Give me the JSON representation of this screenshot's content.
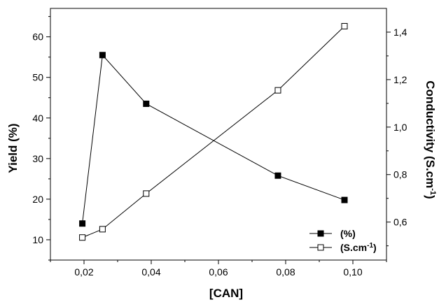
{
  "chart_data": {
    "type": "line",
    "xlabel": "[CAN]",
    "ylabel_left": "Yield (%)",
    "ylabel_right": "Conductivity (S.cm",
    "ylabel_right_sup": "-1",
    "ylabel_right_close": ")",
    "xlim": [
      0.01,
      0.11
    ],
    "ylim_left": [
      5,
      67
    ],
    "ylim_right": [
      0.44,
      1.5
    ],
    "x_ticks": [
      0.02,
      0.04,
      0.06,
      0.08,
      0.1
    ],
    "x_tick_labels": [
      "0,02",
      "0,04",
      "0,06",
      "0,08",
      "0,10"
    ],
    "y_left_ticks": [
      10,
      20,
      30,
      40,
      50,
      60
    ],
    "y_left_tick_labels": [
      "10",
      "20",
      "30",
      "40",
      "50",
      "60"
    ],
    "y_right_ticks": [
      0.6,
      0.8,
      1.0,
      1.2,
      1.4
    ],
    "y_right_tick_labels": [
      "0,6",
      "0,8",
      "1,0",
      "1,2",
      "1,4"
    ],
    "legend_position": "bottom-right",
    "series": [
      {
        "name": "(%)",
        "axis": "left",
        "marker": "filled-square",
        "x": [
          0.0195,
          0.0255,
          0.0385,
          0.0777,
          0.0975
        ],
        "values": [
          14,
          55.5,
          43.5,
          25.8,
          19.8
        ]
      },
      {
        "name": "(S.cm",
        "name_sup": "-1",
        "name_close": ")",
        "axis": "right",
        "marker": "open-square",
        "x": [
          0.0195,
          0.0255,
          0.0385,
          0.0777,
          0.0975
        ],
        "values": [
          0.535,
          0.57,
          0.72,
          1.155,
          1.425
        ]
      }
    ]
  }
}
